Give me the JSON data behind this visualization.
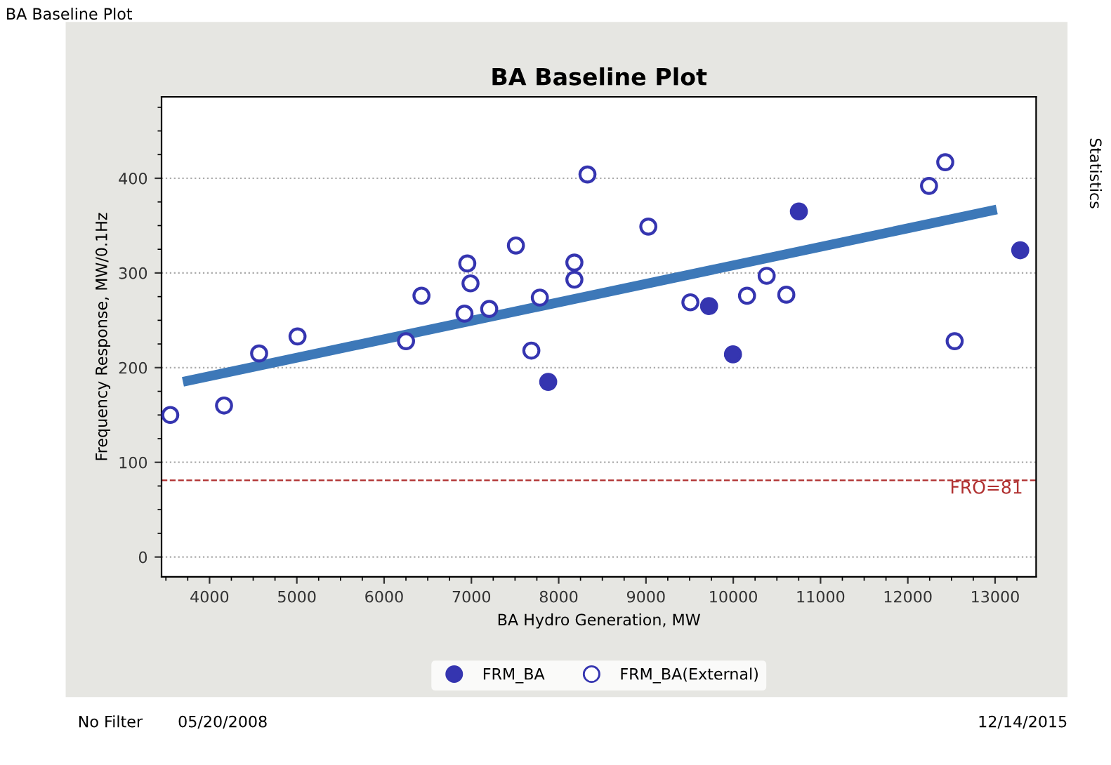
{
  "chart_data": {
    "type": "scatter",
    "title": "BA Baseline Plot",
    "xlabel": "BA Hydro Generation, MW",
    "ylabel": "Frequency Response, MW/0.1Hz",
    "xlim": [
      3450,
      13470
    ],
    "xticks": [
      4000,
      5000,
      6000,
      7000,
      8000,
      9000,
      10000,
      11000,
      12000,
      13000
    ],
    "ylim": [
      -21,
      486
    ],
    "yticks": [
      0,
      100,
      200,
      300,
      400
    ],
    "grid": "y",
    "legend": "bottom",
    "marker": "circle",
    "series": [
      {
        "name": "FRM_BA",
        "color": "#3535b0",
        "x": [
          7880,
          9723,
          9997,
          10752,
          13288
        ],
        "values": [
          185,
          265,
          214,
          365,
          324
        ]
      },
      {
        "name": "FRM_BA(External)",
        "color": "#3535b0",
        "x": [
          3550,
          4166,
          4568,
          5008,
          6251,
          6428,
          6921,
          6953,
          6990,
          7204,
          7510,
          7687,
          7784,
          8180,
          8180,
          8330,
          9027,
          9509,
          10158,
          10383,
          10608,
          12243,
          12429,
          12537
        ],
        "values": [
          150,
          160,
          215,
          233,
          228,
          276,
          257,
          310,
          289,
          262,
          329,
          218,
          274,
          311,
          293,
          404,
          349,
          269,
          276,
          297,
          277,
          392,
          417,
          228
        ]
      },
      {
        "type": "line",
        "color": "#3d78b8",
        "marker": "none",
        "x": [
          3695,
          13019
        ],
        "values": [
          185,
          367
        ]
      }
    ],
    "ref_lines": [
      {
        "axis": "y",
        "value": 81,
        "label": "FRO=81",
        "color": "#b03030",
        "line_style": "dashed"
      }
    ],
    "annotations": [
      "BA Baseline Plot",
      "Statistics",
      "No Filter",
      "05/20/2008",
      "12/14/2015"
    ]
  }
}
